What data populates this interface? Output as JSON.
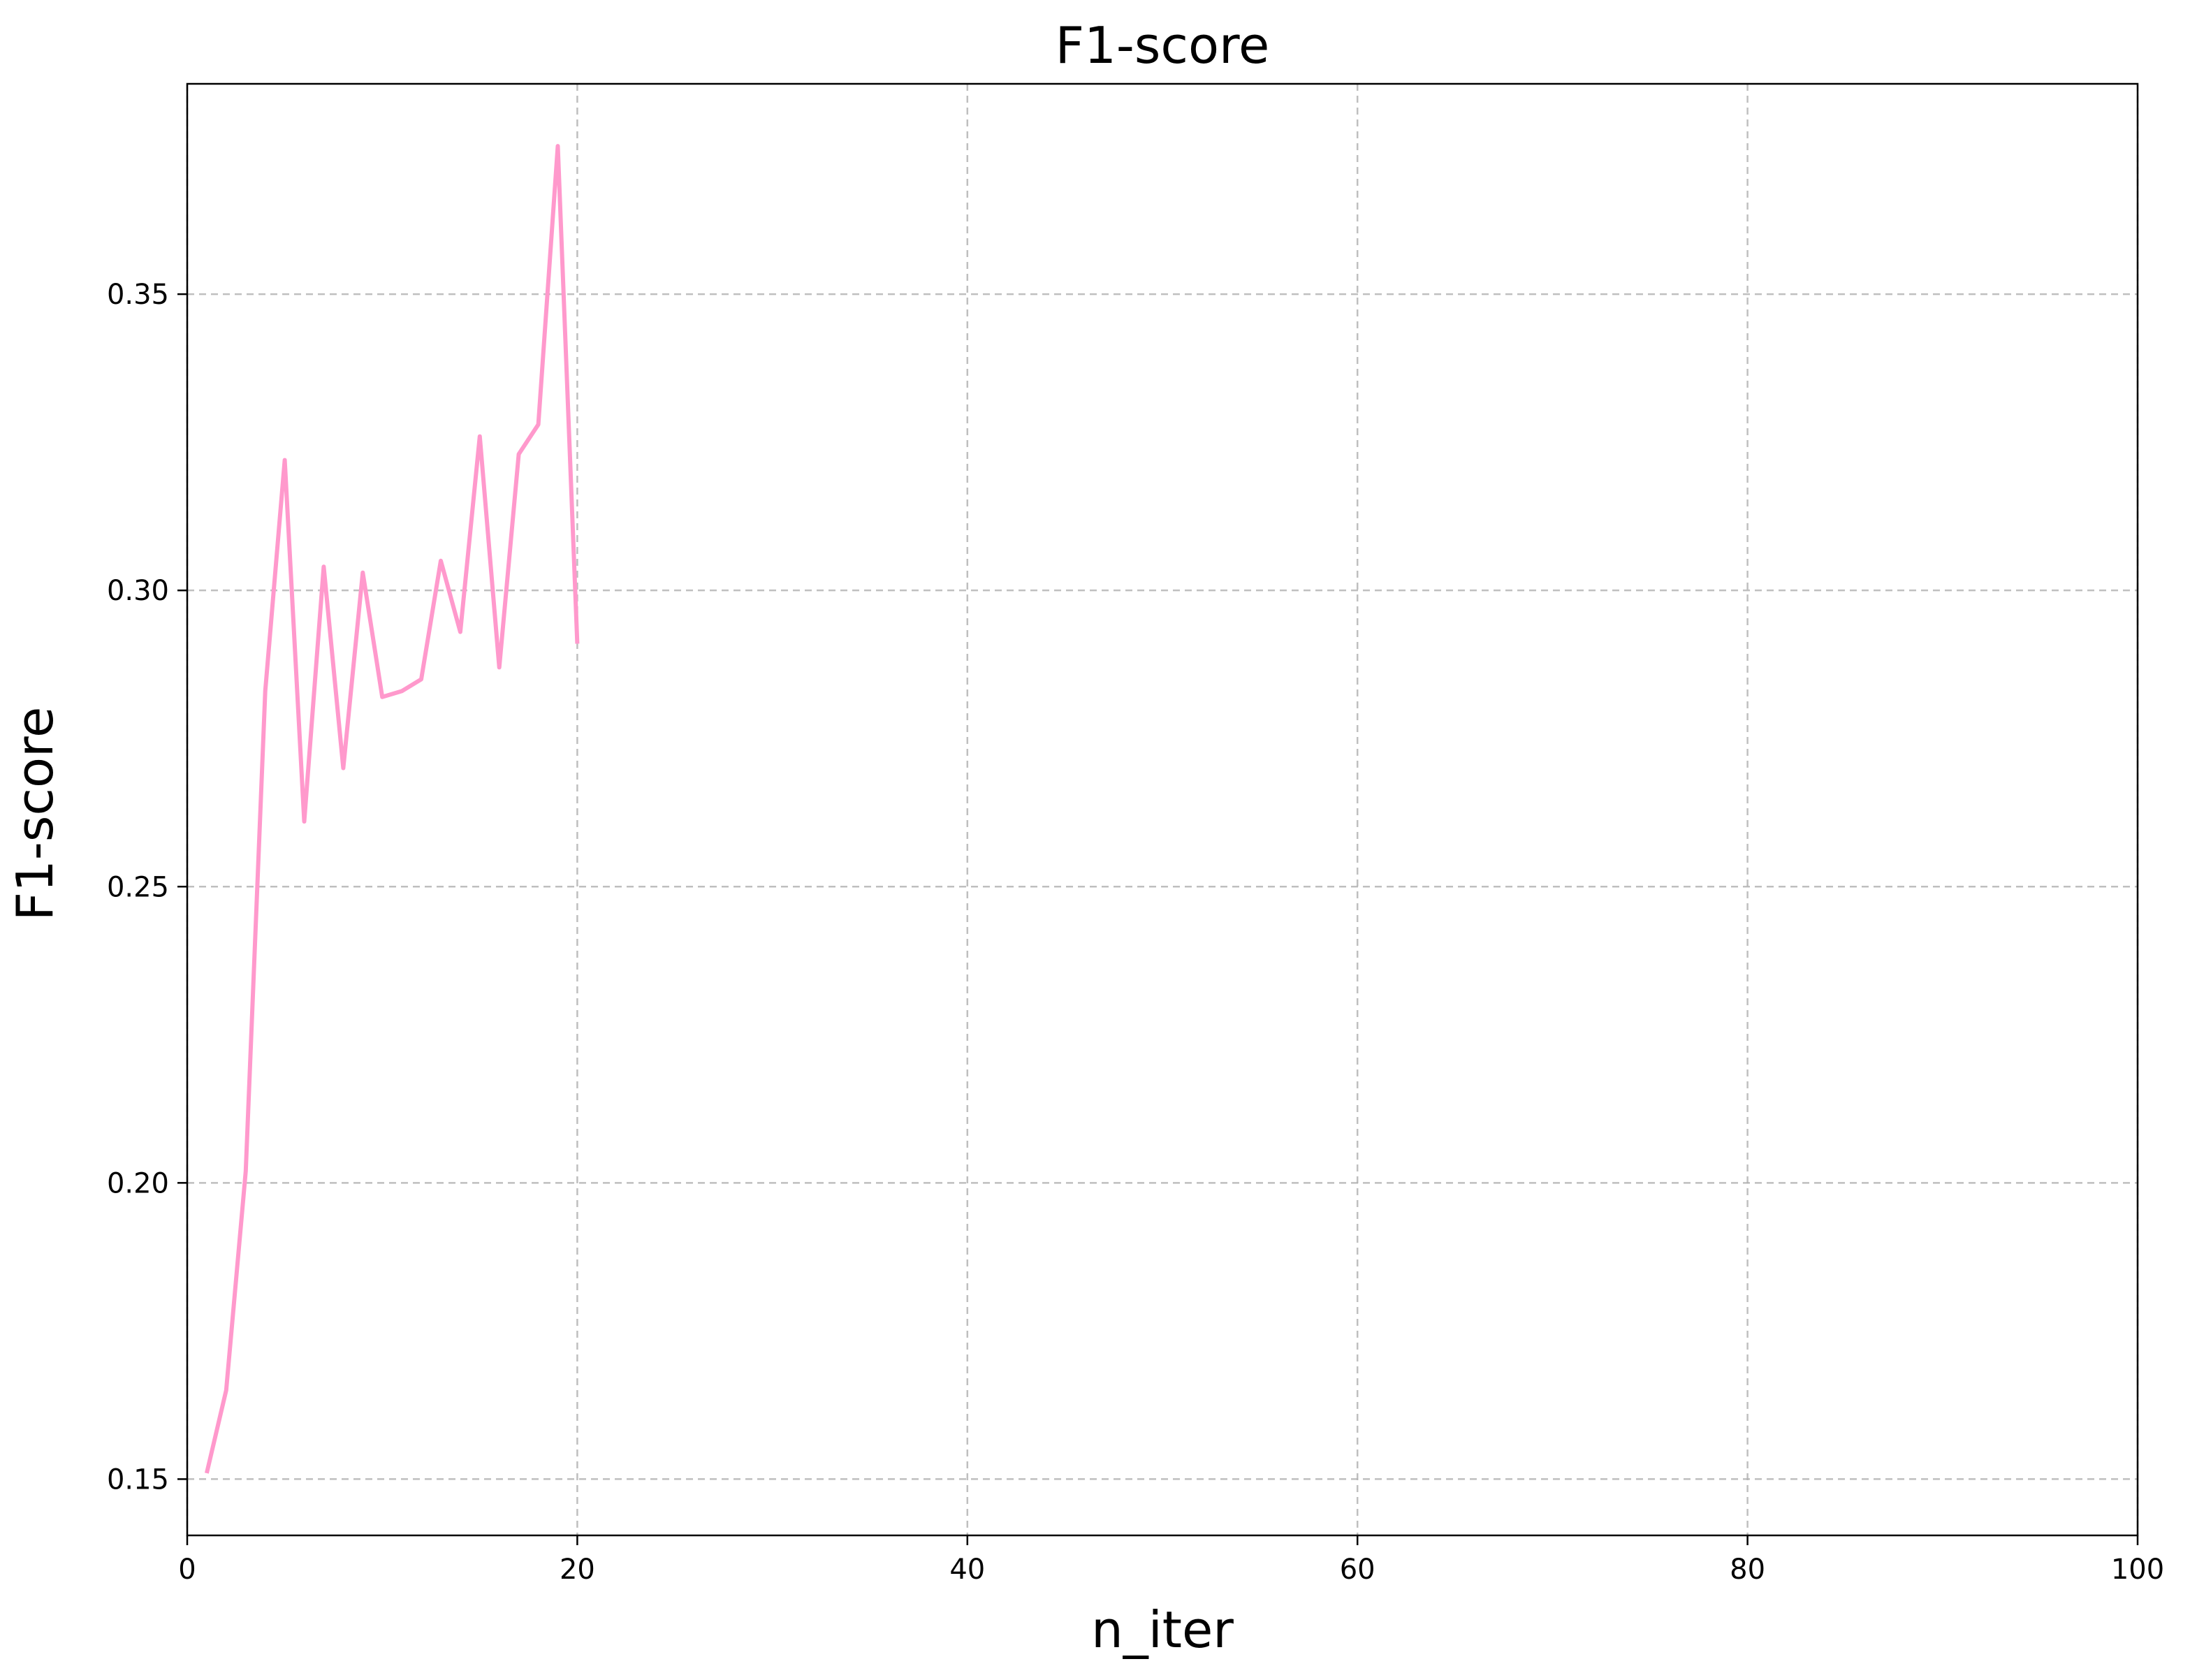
{
  "chart_data": {
    "type": "line",
    "title": "F1-score",
    "xlabel": "n_iter",
    "ylabel": "F1-score",
    "xlim": [
      0,
      100
    ],
    "ylim": [
      0.1405,
      0.3855
    ],
    "xticks": [
      0,
      20,
      40,
      60,
      80,
      100
    ],
    "xtick_labels": [
      "0",
      "20",
      "40",
      "60",
      "80",
      "100"
    ],
    "yticks": [
      0.15,
      0.2,
      0.25,
      0.3,
      0.35
    ],
    "ytick_labels": [
      "0.15",
      "0.20",
      "0.25",
      "0.30",
      "0.35"
    ],
    "grid": true,
    "series": [
      {
        "color": "#ff99cc",
        "x": [
          1,
          2,
          3,
          4,
          5,
          6,
          7,
          8,
          9,
          10,
          11,
          12,
          13,
          14,
          15,
          16,
          17,
          18,
          19,
          20
        ],
        "y": [
          0.151,
          0.165,
          0.202,
          0.283,
          0.322,
          0.261,
          0.304,
          0.27,
          0.303,
          0.282,
          0.283,
          0.285,
          0.305,
          0.293,
          0.326,
          0.287,
          0.323,
          0.328,
          0.375,
          0.291
        ]
      }
    ]
  }
}
